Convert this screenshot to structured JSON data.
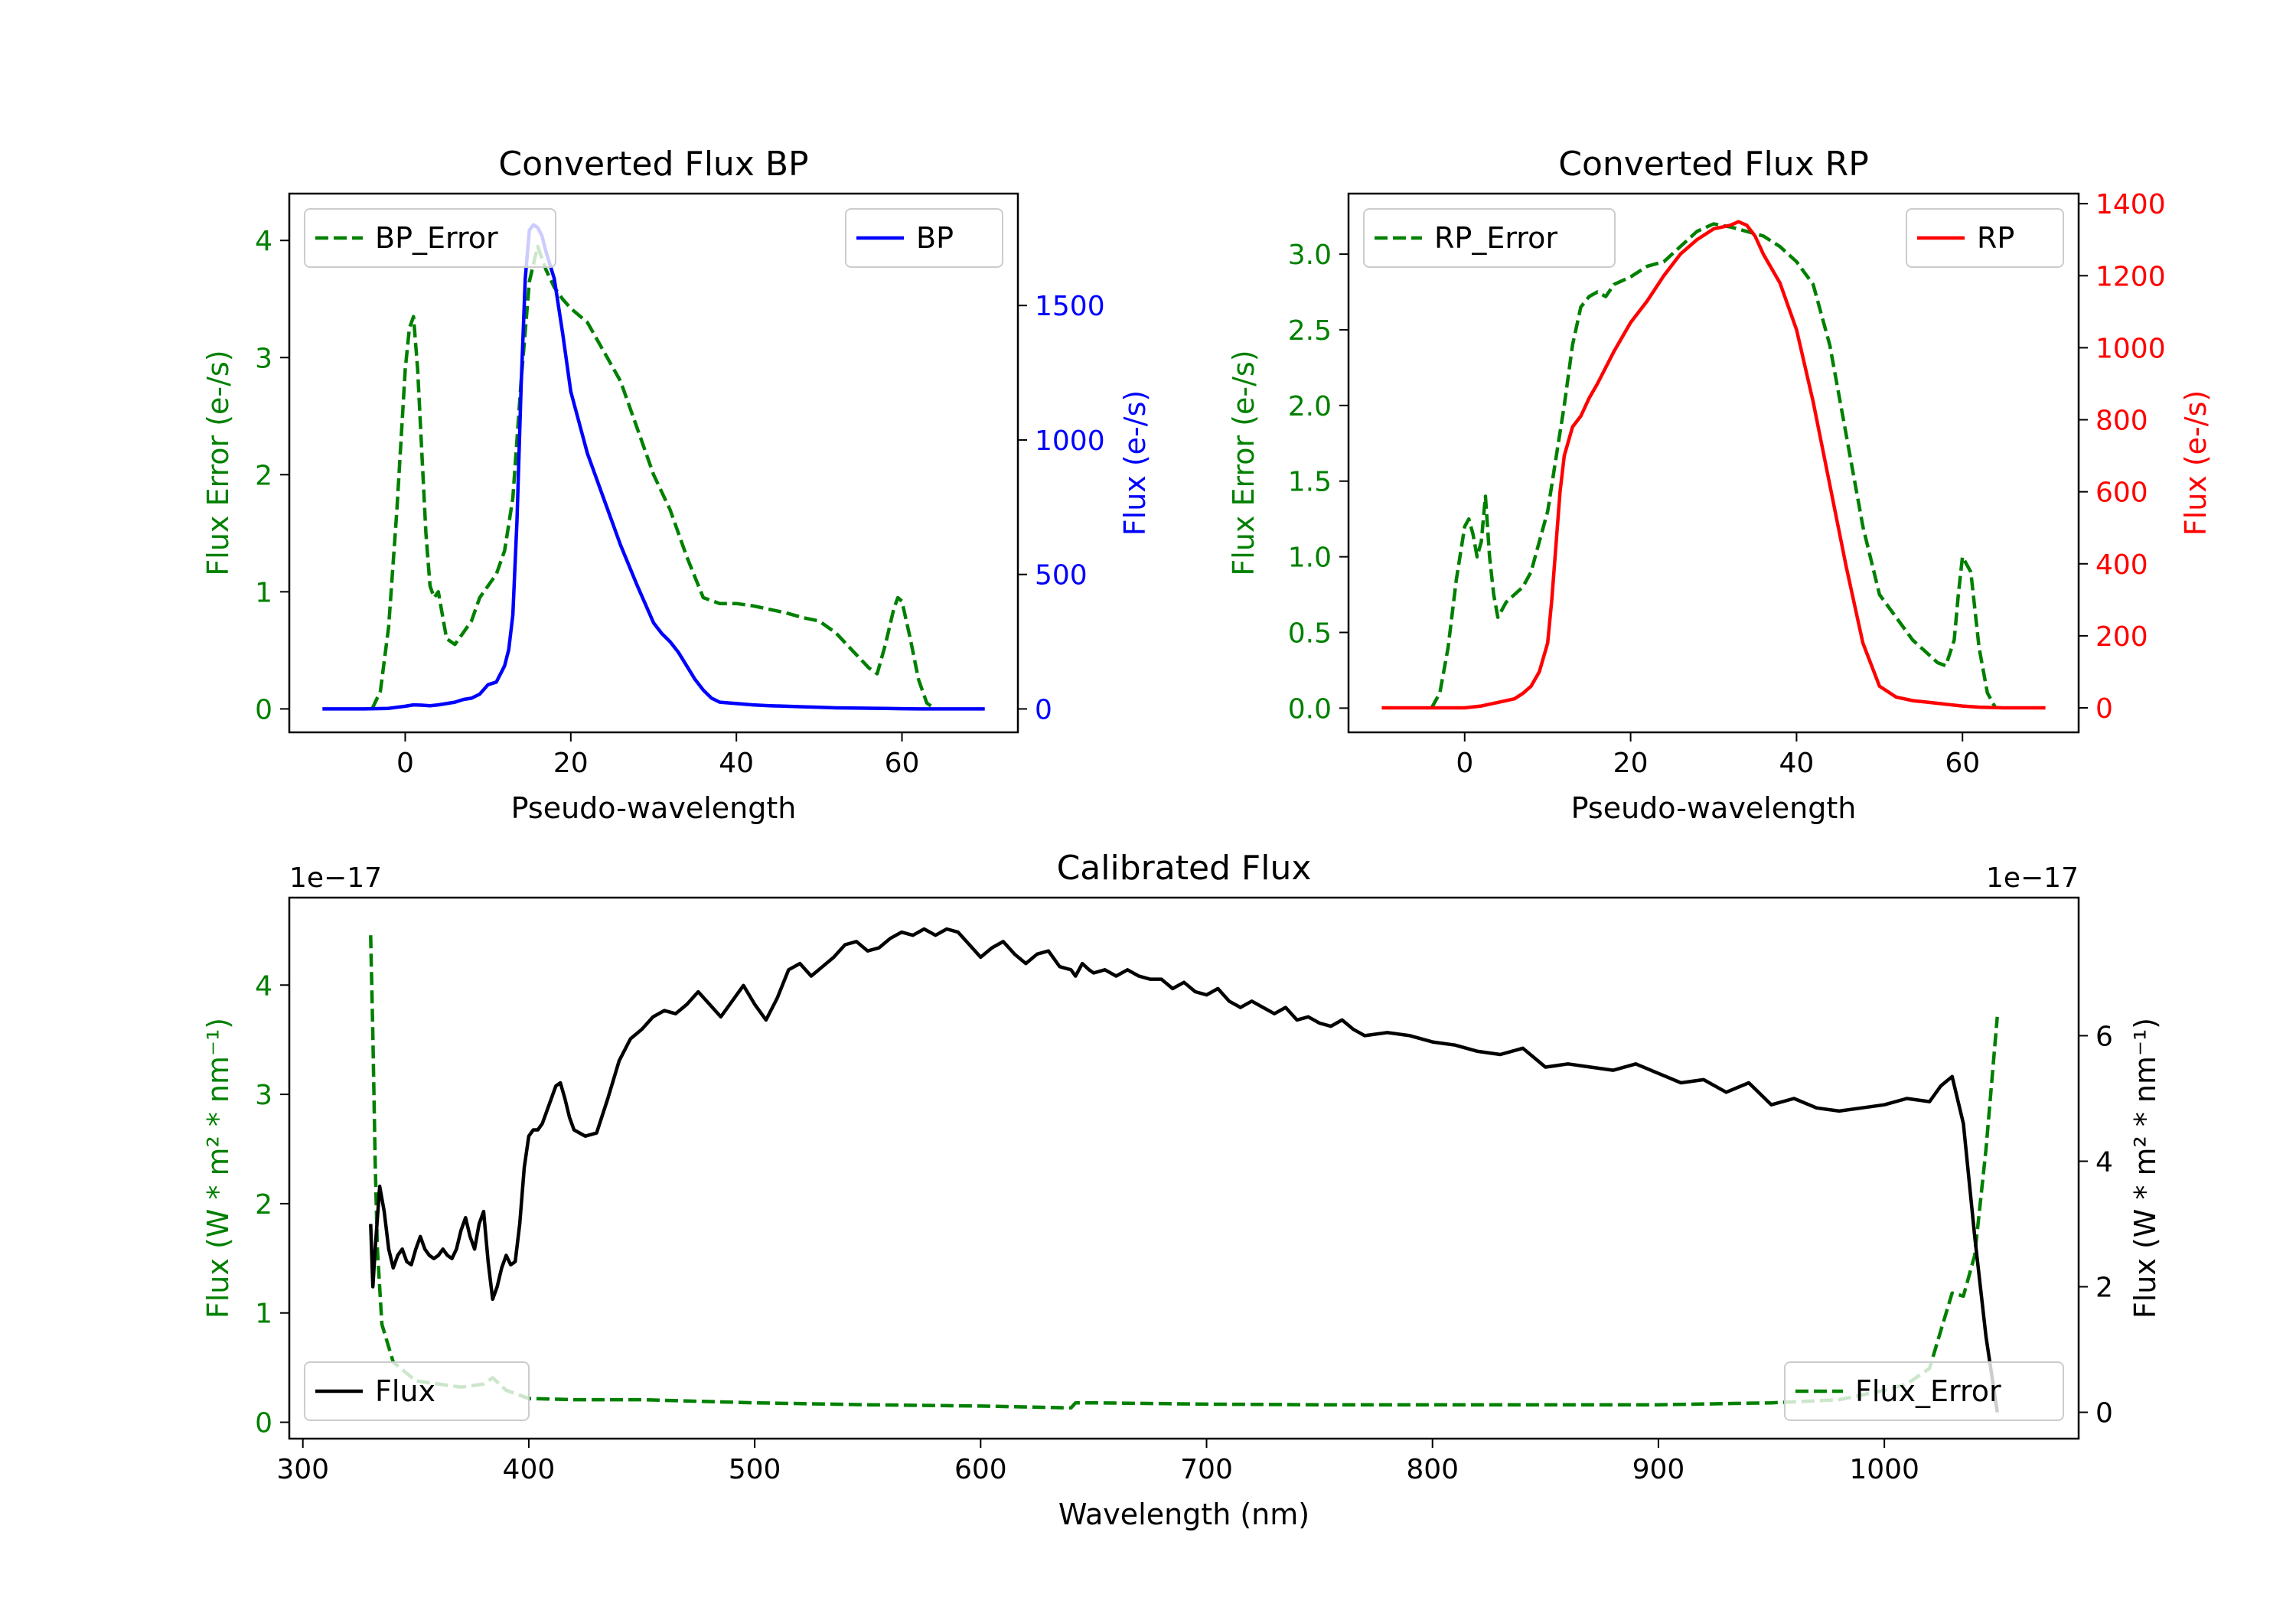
{
  "chart_data": [
    {
      "type": "line",
      "title": "Converted Flux BP",
      "xlabel": "Pseudo-wavelength",
      "ylabel_left": "Flux Error (e-/s)",
      "ylabel_right": "Flux (e-/s)",
      "xlim": [
        -14,
        74
      ],
      "ylim_left": [
        -0.2,
        4.4
      ],
      "ylim_right": [
        -87,
        1916
      ],
      "x_ticks": [
        "0",
        "20",
        "40",
        "60"
      ],
      "left_ticks": [
        "0",
        "1",
        "2",
        "3",
        "4"
      ],
      "right_ticks": [
        "0",
        "500",
        "1000",
        "1500"
      ],
      "colors": {
        "left": "#008000",
        "right": "#0000ff"
      },
      "series": [
        {
          "name": "BP_Error",
          "axis": "left",
          "style": "dashed",
          "color": "#008000",
          "x": [
            -4,
            -3,
            -2,
            -1,
            0,
            0.5,
            1,
            1.5,
            2,
            2.5,
            3,
            3.5,
            4,
            5,
            6,
            7,
            8,
            9,
            10,
            11,
            12,
            13,
            14,
            15,
            16,
            17,
            18,
            19,
            20,
            22,
            24,
            26,
            28,
            30,
            32,
            34,
            36,
            38,
            40,
            42,
            44,
            46,
            48,
            50,
            52,
            54,
            56,
            57,
            58,
            59,
            59.5,
            60,
            61,
            62,
            63,
            64
          ],
          "values": [
            0,
            0.15,
            0.7,
            1.7,
            2.9,
            3.25,
            3.35,
            2.9,
            2.2,
            1.5,
            1.05,
            0.95,
            1.0,
            0.6,
            0.55,
            0.65,
            0.75,
            0.95,
            1.05,
            1.15,
            1.35,
            1.8,
            2.8,
            3.65,
            3.95,
            3.75,
            3.6,
            3.5,
            3.42,
            3.3,
            3.05,
            2.8,
            2.4,
            2.0,
            1.7,
            1.3,
            0.95,
            0.9,
            0.9,
            0.88,
            0.85,
            0.82,
            0.78,
            0.75,
            0.65,
            0.5,
            0.35,
            0.3,
            0.55,
            0.85,
            0.95,
            0.92,
            0.6,
            0.25,
            0.05,
            0
          ]
        },
        {
          "name": "BP",
          "axis": "right",
          "style": "solid",
          "color": "#0000ff",
          "x": [
            -10,
            -5,
            -2,
            0,
            1,
            2,
            3,
            4,
            5,
            6,
            7,
            8,
            9,
            10,
            11,
            12,
            12.5,
            13,
            13.5,
            14,
            14.5,
            15,
            15.5,
            16,
            16.5,
            17,
            18,
            19,
            20,
            22,
            24,
            26,
            28,
            30,
            31,
            32,
            33,
            34,
            35,
            36,
            37,
            38,
            40,
            42,
            44,
            46,
            48,
            50,
            52,
            55,
            58,
            60,
            62,
            65,
            70
          ],
          "values": [
            0,
            0,
            2,
            10,
            15,
            14,
            12,
            15,
            20,
            25,
            35,
            40,
            55,
            90,
            100,
            160,
            220,
            350,
            700,
            1200,
            1600,
            1780,
            1800,
            1790,
            1760,
            1700,
            1600,
            1400,
            1180,
            950,
            780,
            610,
            460,
            320,
            280,
            250,
            210,
            160,
            110,
            70,
            40,
            25,
            20,
            15,
            12,
            10,
            8,
            6,
            4,
            3,
            2,
            1,
            0,
            0,
            0
          ]
        }
      ],
      "legends": [
        {
          "label": "BP_Error",
          "location": "upper left"
        },
        {
          "label": "BP",
          "location": "upper right"
        }
      ]
    },
    {
      "type": "line",
      "title": "Converted Flux RP",
      "xlabel": "Pseudo-wavelength",
      "ylabel_left": "Flux Error (e-/s)",
      "ylabel_right": "Flux (e-/s)",
      "xlim": [
        -14,
        74
      ],
      "ylim_left": [
        -0.16,
        3.4
      ],
      "ylim_right": [
        -68,
        1428
      ],
      "x_ticks": [
        "0",
        "20",
        "40",
        "60"
      ],
      "left_ticks": [
        "0.0",
        "0.5",
        "1.0",
        "1.5",
        "2.0",
        "2.5",
        "3.0"
      ],
      "right_ticks": [
        "0",
        "200",
        "400",
        "600",
        "800",
        "1000",
        "1200",
        "1400"
      ],
      "colors": {
        "left": "#008000",
        "right": "#ff0000"
      },
      "series": [
        {
          "name": "RP_Error",
          "axis": "left",
          "style": "dashed",
          "color": "#008000",
          "x": [
            -4,
            -3,
            -2,
            -1,
            0,
            0.5,
            1,
            1.5,
            2,
            2.5,
            3,
            3.5,
            4,
            5,
            6,
            7,
            8,
            9,
            10,
            11,
            12,
            13,
            14,
            15,
            16,
            17,
            18,
            20,
            22,
            24,
            26,
            28,
            30,
            32,
            34,
            36,
            38,
            40,
            42,
            44,
            46,
            48,
            50,
            52,
            54,
            56,
            57,
            58,
            59,
            59.5,
            60,
            61,
            62,
            63,
            64
          ],
          "values": [
            0,
            0.1,
            0.4,
            0.85,
            1.2,
            1.25,
            1.15,
            1.0,
            1.1,
            1.4,
            1.0,
            0.75,
            0.6,
            0.7,
            0.75,
            0.8,
            0.9,
            1.1,
            1.3,
            1.65,
            2.0,
            2.4,
            2.65,
            2.72,
            2.75,
            2.72,
            2.8,
            2.85,
            2.92,
            2.95,
            3.05,
            3.15,
            3.2,
            3.18,
            3.15,
            3.12,
            3.05,
            2.95,
            2.8,
            2.4,
            1.8,
            1.2,
            0.75,
            0.6,
            0.45,
            0.35,
            0.3,
            0.28,
            0.45,
            0.75,
            1.0,
            0.9,
            0.4,
            0.1,
            0
          ]
        },
        {
          "name": "RP",
          "axis": "right",
          "style": "solid",
          "color": "#ff0000",
          "x": [
            -10,
            -5,
            0,
            2,
            4,
            6,
            7,
            8,
            9,
            10,
            10.5,
            11,
            11.5,
            12,
            13,
            14,
            15,
            16,
            18,
            20,
            22,
            24,
            26,
            28,
            30,
            32,
            33,
            34,
            35,
            36,
            38,
            40,
            42,
            44,
            46,
            48,
            50,
            52,
            54,
            56,
            58,
            60,
            62,
            65,
            70
          ],
          "values": [
            0,
            0,
            0,
            5,
            15,
            25,
            40,
            60,
            100,
            180,
            300,
            450,
            600,
            700,
            780,
            810,
            860,
            900,
            990,
            1070,
            1130,
            1200,
            1260,
            1300,
            1330,
            1340,
            1350,
            1340,
            1310,
            1260,
            1180,
            1050,
            850,
            620,
            390,
            180,
            60,
            30,
            20,
            15,
            10,
            5,
            2,
            0,
            0
          ]
        }
      ],
      "legends": [
        {
          "label": "RP_Error",
          "location": "upper left"
        },
        {
          "label": "RP",
          "location": "upper right"
        }
      ]
    },
    {
      "type": "line",
      "title": "Calibrated Flux",
      "xlabel": "Wavelength (nm)",
      "ylabel_left": "Flux (W * m² * nm⁻¹)",
      "ylabel_right": "Flux (W * m² * nm⁻¹)",
      "offset_left": "1e−17",
      "offset_right": "1e−17",
      "xlim": [
        294,
        1086
      ],
      "ylim_left": [
        -0.15,
        4.8
      ],
      "ylim_right": [
        -0.42,
        8.2
      ],
      "x_ticks": [
        "300",
        "400",
        "500",
        "600",
        "700",
        "800",
        "900",
        "1000"
      ],
      "left_ticks": [
        "0",
        "1",
        "2",
        "3",
        "4"
      ],
      "right_ticks": [
        "0",
        "2",
        "4",
        "6"
      ],
      "colors": {
        "left": "#008000",
        "right": "#000000"
      },
      "series": [
        {
          "name": "Flux_Error",
          "axis": "right",
          "style": "dashed",
          "color": "#008000",
          "x": [
            330,
            331,
            332,
            333,
            335,
            340,
            350,
            360,
            370,
            380,
            384,
            390,
            400,
            420,
            450,
            500,
            550,
            600,
            640,
            642,
            650,
            700,
            750,
            800,
            850,
            900,
            950,
            980,
            1000,
            1010,
            1020,
            1025,
            1030,
            1035,
            1040,
            1045,
            1050
          ],
          "values": [
            7.6,
            6.0,
            4.0,
            2.6,
            1.4,
            0.8,
            0.5,
            0.45,
            0.4,
            0.45,
            0.55,
            0.35,
            0.22,
            0.2,
            0.2,
            0.15,
            0.12,
            0.1,
            0.07,
            0.15,
            0.15,
            0.13,
            0.12,
            0.12,
            0.12,
            0.12,
            0.15,
            0.2,
            0.35,
            0.45,
            0.7,
            1.3,
            1.9,
            1.85,
            2.5,
            4.2,
            6.3
          ]
        },
        {
          "name": "Flux",
          "axis": "right",
          "style": "solid",
          "color": "#000000",
          "x": [
            330,
            331,
            332,
            334,
            336,
            338,
            340,
            342,
            344,
            346,
            348,
            350,
            352,
            354,
            356,
            358,
            360,
            362,
            364,
            366,
            368,
            370,
            372,
            374,
            376,
            378,
            380,
            382,
            384,
            386,
            388,
            390,
            392,
            394,
            396,
            398,
            400,
            402,
            404,
            406,
            408,
            410,
            412,
            414,
            416,
            418,
            420,
            425,
            430,
            435,
            440,
            445,
            450,
            455,
            460,
            465,
            470,
            475,
            480,
            485,
            490,
            495,
            500,
            505,
            510,
            515,
            520,
            525,
            530,
            535,
            540,
            545,
            550,
            555,
            560,
            565,
            570,
            575,
            580,
            585,
            590,
            595,
            600,
            605,
            610,
            615,
            620,
            625,
            630,
            635,
            640,
            642,
            645,
            648,
            650,
            655,
            660,
            665,
            670,
            675,
            680,
            685,
            690,
            695,
            700,
            705,
            710,
            715,
            720,
            725,
            730,
            735,
            740,
            745,
            750,
            755,
            760,
            765,
            770,
            780,
            790,
            800,
            810,
            820,
            830,
            840,
            850,
            860,
            870,
            880,
            890,
            900,
            910,
            920,
            930,
            940,
            950,
            960,
            970,
            980,
            990,
            1000,
            1010,
            1020,
            1025,
            1030,
            1035,
            1040,
            1045,
            1050
          ],
          "values": [
            3.0,
            2.0,
            2.6,
            3.6,
            3.2,
            2.6,
            2.3,
            2.5,
            2.6,
            2.4,
            2.35,
            2.6,
            2.8,
            2.6,
            2.5,
            2.45,
            2.5,
            2.6,
            2.5,
            2.45,
            2.6,
            2.9,
            3.1,
            2.8,
            2.6,
            3.0,
            3.2,
            2.4,
            1.8,
            2.0,
            2.3,
            2.5,
            2.35,
            2.4,
            3.0,
            3.9,
            4.4,
            4.5,
            4.5,
            4.6,
            4.8,
            5.0,
            5.2,
            5.25,
            5.0,
            4.7,
            4.5,
            4.4,
            4.45,
            5.0,
            5.6,
            5.95,
            6.1,
            6.3,
            6.4,
            6.35,
            6.5,
            6.7,
            6.5,
            6.3,
            6.55,
            6.8,
            6.5,
            6.25,
            6.6,
            7.05,
            7.15,
            6.95,
            7.1,
            7.25,
            7.45,
            7.5,
            7.35,
            7.4,
            7.55,
            7.65,
            7.6,
            7.7,
            7.6,
            7.7,
            7.65,
            7.45,
            7.25,
            7.4,
            7.5,
            7.3,
            7.15,
            7.3,
            7.35,
            7.1,
            7.05,
            6.95,
            7.15,
            7.05,
            7.0,
            7.05,
            6.95,
            7.05,
            6.95,
            6.9,
            6.9,
            6.75,
            6.85,
            6.7,
            6.65,
            6.75,
            6.55,
            6.45,
            6.55,
            6.45,
            6.35,
            6.45,
            6.25,
            6.3,
            6.2,
            6.15,
            6.25,
            6.1,
            6.0,
            6.05,
            6.0,
            5.9,
            5.85,
            5.75,
            5.7,
            5.8,
            5.5,
            5.55,
            5.5,
            5.45,
            5.55,
            5.4,
            5.25,
            5.3,
            5.1,
            5.25,
            4.9,
            5.0,
            4.85,
            4.8,
            4.85,
            4.9,
            5.0,
            4.95,
            5.2,
            5.35,
            4.6,
            2.8,
            1.2,
            0.0
          ]
        }
      ],
      "legends": [
        {
          "label": "Flux",
          "location": "lower left"
        },
        {
          "label": "Flux_Error",
          "location": "lower right"
        }
      ]
    }
  ]
}
